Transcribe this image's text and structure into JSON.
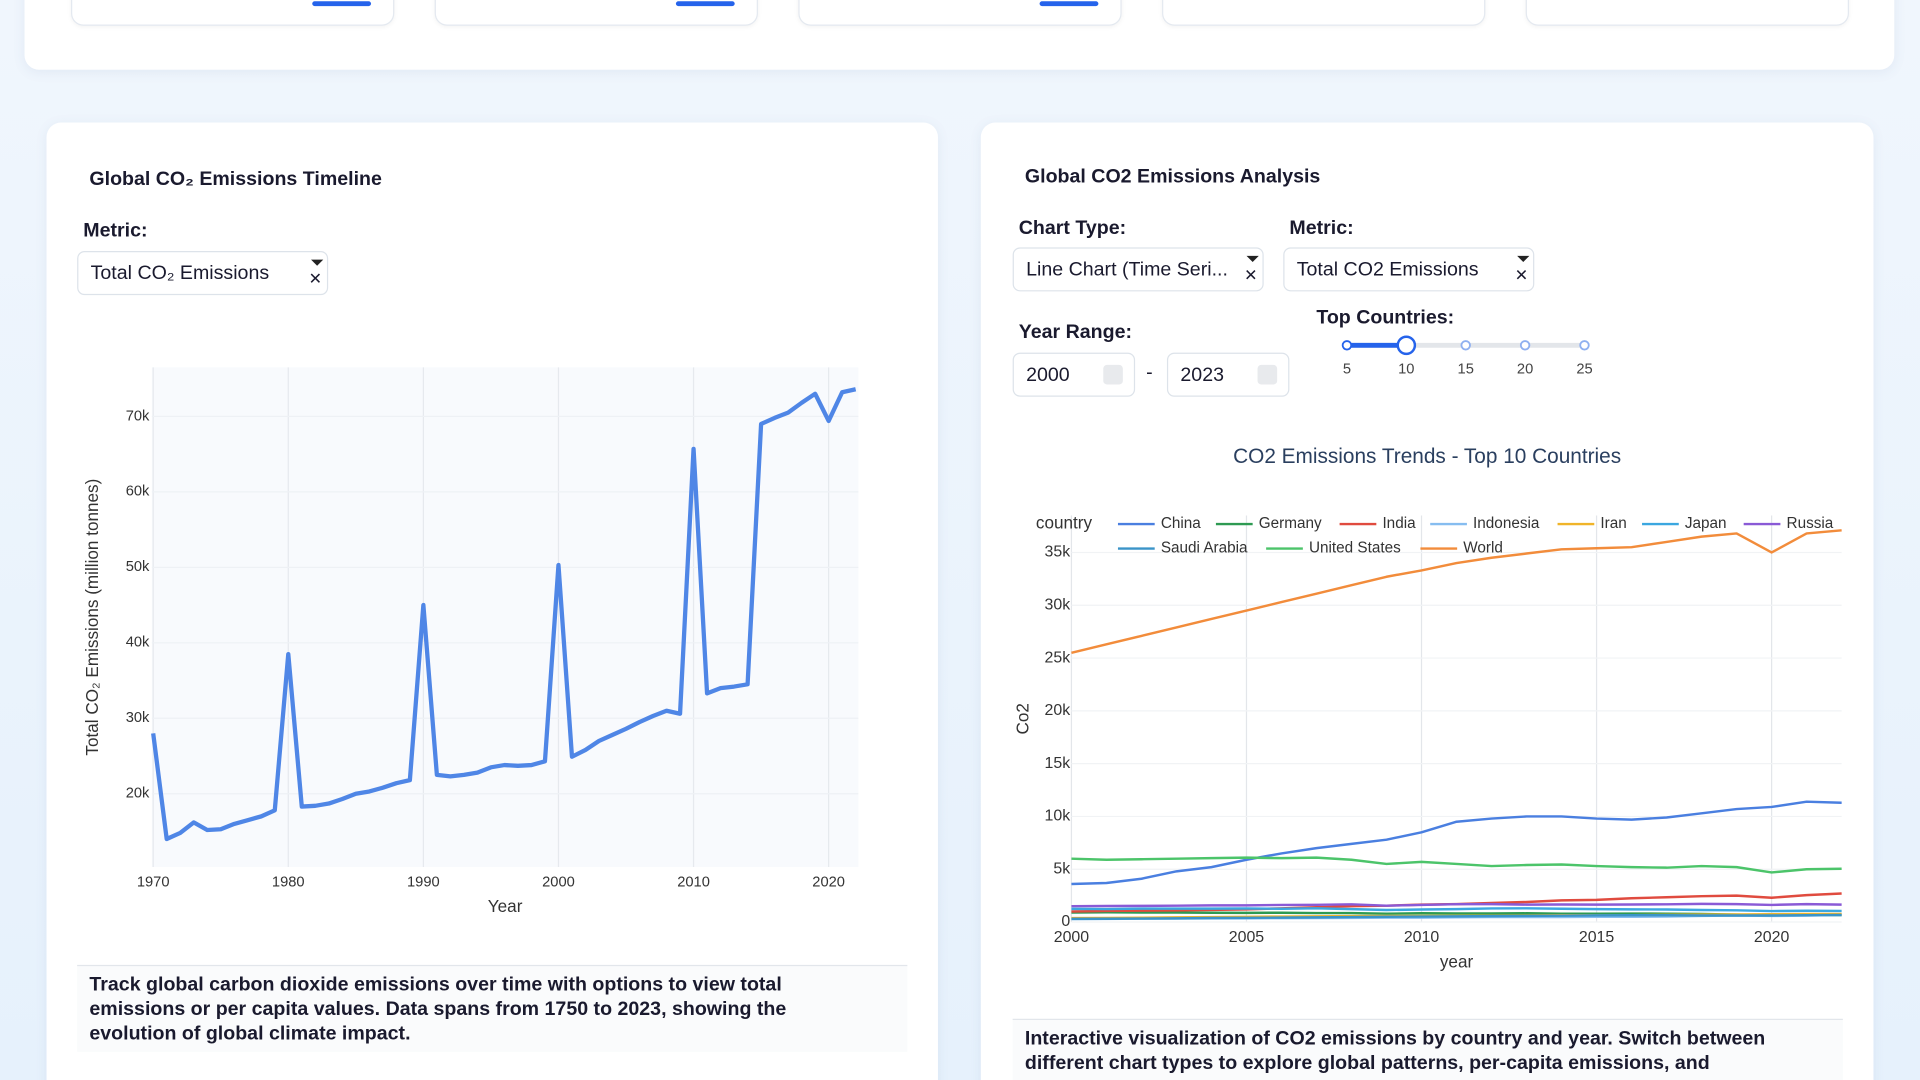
{
  "left_panel": {
    "title": "Global CO₂ Emissions Timeline",
    "metric_label": "Metric:",
    "metric_value": "Total CO₂ Emissions",
    "chart": {
      "type": "line",
      "xlabel": "Year",
      "ylabel": "Total CO₂ Emissions (million tonnes)",
      "color": "#4f86e6",
      "grid": true,
      "x": [
        1970,
        1971,
        1972,
        1973,
        1974,
        1975,
        1976,
        1977,
        1978,
        1979,
        1980,
        1981,
        1982,
        1983,
        1984,
        1985,
        1986,
        1987,
        1988,
        1989,
        1990,
        1991,
        1992,
        1993,
        1994,
        1995,
        1996,
        1997,
        1998,
        1999,
        2000,
        2001,
        2002,
        2003,
        2004,
        2005,
        2006,
        2007,
        2008,
        2009,
        2010,
        2011,
        2012,
        2013,
        2014,
        2015,
        2016,
        2017,
        2018,
        2019,
        2020,
        2021,
        2022
      ],
      "values": [
        28000,
        14000,
        14800,
        16200,
        15200,
        15300,
        16000,
        16500,
        17000,
        17800,
        38500,
        18300,
        18400,
        18700,
        19300,
        20000,
        20300,
        20800,
        21400,
        21800,
        45000,
        22500,
        22300,
        22500,
        22800,
        23500,
        23800,
        23700,
        23800,
        24300,
        50300,
        24900,
        25800,
        27000,
        27800,
        28600,
        29500,
        30300,
        31000,
        30600,
        65700,
        33300,
        34000,
        34200,
        34500,
        69000,
        69800,
        70500,
        71800,
        73000,
        69400,
        73200,
        73600
      ],
      "xlim": [
        1969.9,
        2022.2
      ],
      "ylim": [
        10300,
        76500
      ],
      "xticks": [
        1970,
        1980,
        1990,
        2000,
        2010,
        2020
      ],
      "yticks": [
        {
          "value": 20000,
          "label": "20k"
        },
        {
          "value": 30000,
          "label": "30k"
        },
        {
          "value": 40000,
          "label": "40k"
        },
        {
          "value": 50000,
          "label": "50k"
        },
        {
          "value": 60000,
          "label": "60k"
        },
        {
          "value": 70000,
          "label": "70k"
        }
      ]
    },
    "description": "Track global carbon dioxide emissions over time with options to view total emissions or per capita values. Data spans from 1750 to 2023, showing the evolution of global climate impact."
  },
  "right_panel": {
    "title": "Global CO2 Emissions Analysis",
    "chart_type_label": "Chart Type:",
    "chart_type_value": "Line Chart (Time Seri...",
    "metric_label": "Metric:",
    "metric_value": "Total CO2 Emissions",
    "year_range": {
      "label": "Year Range:",
      "from": 2000,
      "separator": "-",
      "to": 2023
    },
    "slider": {
      "label": "Top Countries:",
      "marks": [
        5,
        10,
        15,
        20,
        25
      ],
      "value": 10
    },
    "chart": {
      "type": "line",
      "title": "CO2 Emissions Trends - Top 10 Countries",
      "xlabel": "year",
      "ylabel": "Co2",
      "legend_title": "country",
      "grid": true,
      "x": [
        2000,
        2001,
        2002,
        2003,
        2004,
        2005,
        2006,
        2007,
        2008,
        2009,
        2010,
        2011,
        2012,
        2013,
        2014,
        2015,
        2016,
        2017,
        2018,
        2019,
        2020,
        2021,
        2022
      ],
      "series": [
        {
          "name": "China",
          "color": "#4a7fe0",
          "values": [
            3600,
            3700,
            4100,
            4800,
            5200,
            5900,
            6500,
            7000,
            7400,
            7800,
            8500,
            9500,
            9800,
            10000,
            10000,
            9800,
            9700,
            9900,
            10300,
            10700,
            10900,
            11400,
            11300
          ]
        },
        {
          "name": "Germany",
          "color": "#2e9a52",
          "values": [
            900,
            920,
            900,
            900,
            880,
            870,
            880,
            850,
            850,
            790,
            830,
            810,
            810,
            830,
            790,
            790,
            800,
            790,
            760,
            710,
            650,
            680,
            670
          ]
        },
        {
          "name": "India",
          "color": "#e04b3f",
          "values": [
            1000,
            1050,
            1080,
            1100,
            1150,
            1200,
            1300,
            1400,
            1500,
            1550,
            1650,
            1700,
            1800,
            1900,
            2050,
            2100,
            2250,
            2350,
            2450,
            2500,
            2300,
            2550,
            2700
          ]
        },
        {
          "name": "Indonesia",
          "color": "#86bdf0",
          "values": [
            280,
            300,
            320,
            330,
            340,
            350,
            370,
            380,
            390,
            410,
            420,
            450,
            470,
            480,
            480,
            500,
            500,
            520,
            580,
            620,
            580,
            610,
            690
          ]
        },
        {
          "name": "Iran",
          "color": "#f0b429",
          "values": [
            370,
            390,
            410,
            440,
            470,
            490,
            520,
            540,
            560,
            570,
            580,
            590,
            600,
            610,
            640,
            640,
            650,
            680,
            700,
            720,
            740,
            760,
            760
          ]
        },
        {
          "name": "Japan",
          "color": "#3ba7e0",
          "values": [
            1250,
            1230,
            1270,
            1270,
            1270,
            1280,
            1260,
            1300,
            1220,
            1140,
            1190,
            1220,
            1290,
            1300,
            1260,
            1220,
            1200,
            1190,
            1140,
            1110,
            1040,
            1070,
            1050
          ]
        },
        {
          "name": "Russia",
          "color": "#8a5ad6",
          "values": [
            1500,
            1520,
            1530,
            1550,
            1580,
            1580,
            1620,
            1630,
            1680,
            1550,
            1620,
            1690,
            1700,
            1650,
            1660,
            1650,
            1660,
            1680,
            1720,
            1700,
            1620,
            1700,
            1650
          ]
        },
        {
          "name": "Saudi Arabia",
          "color": "#3a94c8",
          "values": [
            300,
            310,
            330,
            350,
            380,
            400,
            420,
            440,
            470,
            500,
            520,
            540,
            560,
            580,
            600,
            630,
            640,
            640,
            620,
            620,
            620,
            650,
            670
          ]
        },
        {
          "name": "United States",
          "color": "#4cc46a",
          "values": [
            6000,
            5900,
            5950,
            6000,
            6050,
            6100,
            6050,
            6100,
            5900,
            5500,
            5700,
            5500,
            5300,
            5400,
            5450,
            5300,
            5200,
            5150,
            5300,
            5200,
            4700,
            5000,
            5050
          ]
        },
        {
          "name": "World",
          "color": "#f28c3b",
          "values": [
            25500,
            26300,
            27100,
            27900,
            28700,
            29500,
            30300,
            31100,
            31900,
            32700,
            33300,
            34000,
            34500,
            34900,
            35300,
            35400,
            35500,
            36000,
            36500,
            36800,
            35000,
            36800,
            37100
          ]
        }
      ],
      "xlim": [
        2000,
        2022
      ],
      "ylim": [
        0,
        38500
      ],
      "xticks": [
        2000,
        2005,
        2010,
        2015,
        2020
      ],
      "yticks": [
        0,
        {
          "value": 5000,
          "label": "5k"
        },
        {
          "value": 10000,
          "label": "10k"
        },
        {
          "value": 15000,
          "label": "15k"
        },
        {
          "value": 20000,
          "label": "20k"
        },
        {
          "value": 25000,
          "label": "25k"
        },
        {
          "value": 30000,
          "label": "30k"
        },
        {
          "value": 35000,
          "label": "35k"
        }
      ]
    },
    "description": "Interactive visualization of CO2 emissions by country and year. Switch between different chart types to explore global patterns, per-capita emissions, and"
  }
}
